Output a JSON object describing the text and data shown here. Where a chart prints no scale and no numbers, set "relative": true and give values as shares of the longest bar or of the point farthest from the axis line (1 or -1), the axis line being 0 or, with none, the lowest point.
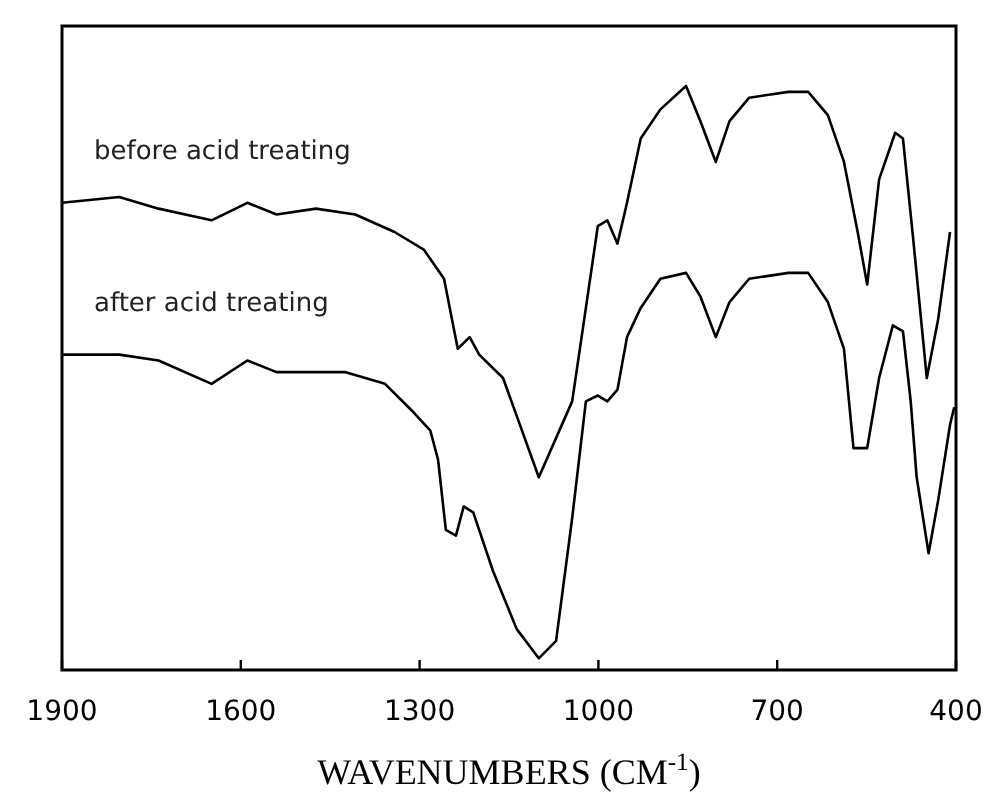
{
  "chart_data": {
    "type": "line",
    "relative": true,
    "xlabel": "WAVENUMBERS (CM$^{-1}$)",
    "xlim": [
      1900,
      400
    ],
    "xticks": [
      1900,
      1600,
      1300,
      1000,
      700,
      400
    ],
    "tick_labels": "x",
    "grid": false,
    "marker": "none",
    "line_style": "solid",
    "series": [
      {
        "name": "before acid treating",
        "color": "#000000",
        "x": [
          1900,
          1804,
          1738,
          1649,
          1589,
          1540,
          1474,
          1408,
          1342,
          1293,
          1259,
          1236,
          1216,
          1200,
          1160,
          1100,
          1044,
          1021,
          1001,
          985,
          968,
          952,
          929,
          896,
          853,
          829,
          803,
          780,
          747,
          681,
          648,
          615,
          588,
          565,
          549,
          529,
          502,
          489,
          472,
          449,
          430,
          410
        ],
        "values": [
          0.8,
          0.81,
          0.79,
          0.77,
          0.8,
          0.78,
          0.79,
          0.78,
          0.75,
          0.72,
          0.67,
          0.55,
          0.57,
          0.54,
          0.5,
          0.33,
          0.46,
          0.62,
          0.76,
          0.77,
          0.73,
          0.8,
          0.91,
          0.96,
          1.0,
          0.94,
          0.87,
          0.94,
          0.98,
          0.99,
          0.99,
          0.95,
          0.87,
          0.75,
          0.66,
          0.84,
          0.92,
          0.91,
          0.74,
          0.5,
          0.6,
          0.75
        ]
      },
      {
        "name": "after acid treating",
        "color": "#000000",
        "x": [
          1900,
          1804,
          1738,
          1649,
          1589,
          1540,
          1474,
          1424,
          1358,
          1309,
          1282,
          1269,
          1256,
          1239,
          1226,
          1210,
          1177,
          1137,
          1100,
          1071,
          1044,
          1021,
          1001,
          985,
          968,
          952,
          929,
          896,
          853,
          829,
          803,
          780,
          747,
          681,
          648,
          615,
          588,
          572,
          549,
          529,
          506,
          489,
          476,
          466,
          446,
          430,
          410,
          403
        ],
        "values": [
          0.54,
          0.54,
          0.53,
          0.49,
          0.53,
          0.51,
          0.51,
          0.51,
          0.49,
          0.44,
          0.41,
          0.36,
          0.24,
          0.23,
          0.28,
          0.27,
          0.17,
          0.07,
          0.02,
          0.05,
          0.26,
          0.46,
          0.47,
          0.46,
          0.48,
          0.57,
          0.62,
          0.67,
          0.68,
          0.64,
          0.57,
          0.63,
          0.67,
          0.68,
          0.68,
          0.63,
          0.55,
          0.38,
          0.38,
          0.5,
          0.59,
          0.58,
          0.46,
          0.33,
          0.2,
          0.29,
          0.42,
          0.45
        ]
      }
    ]
  }
}
